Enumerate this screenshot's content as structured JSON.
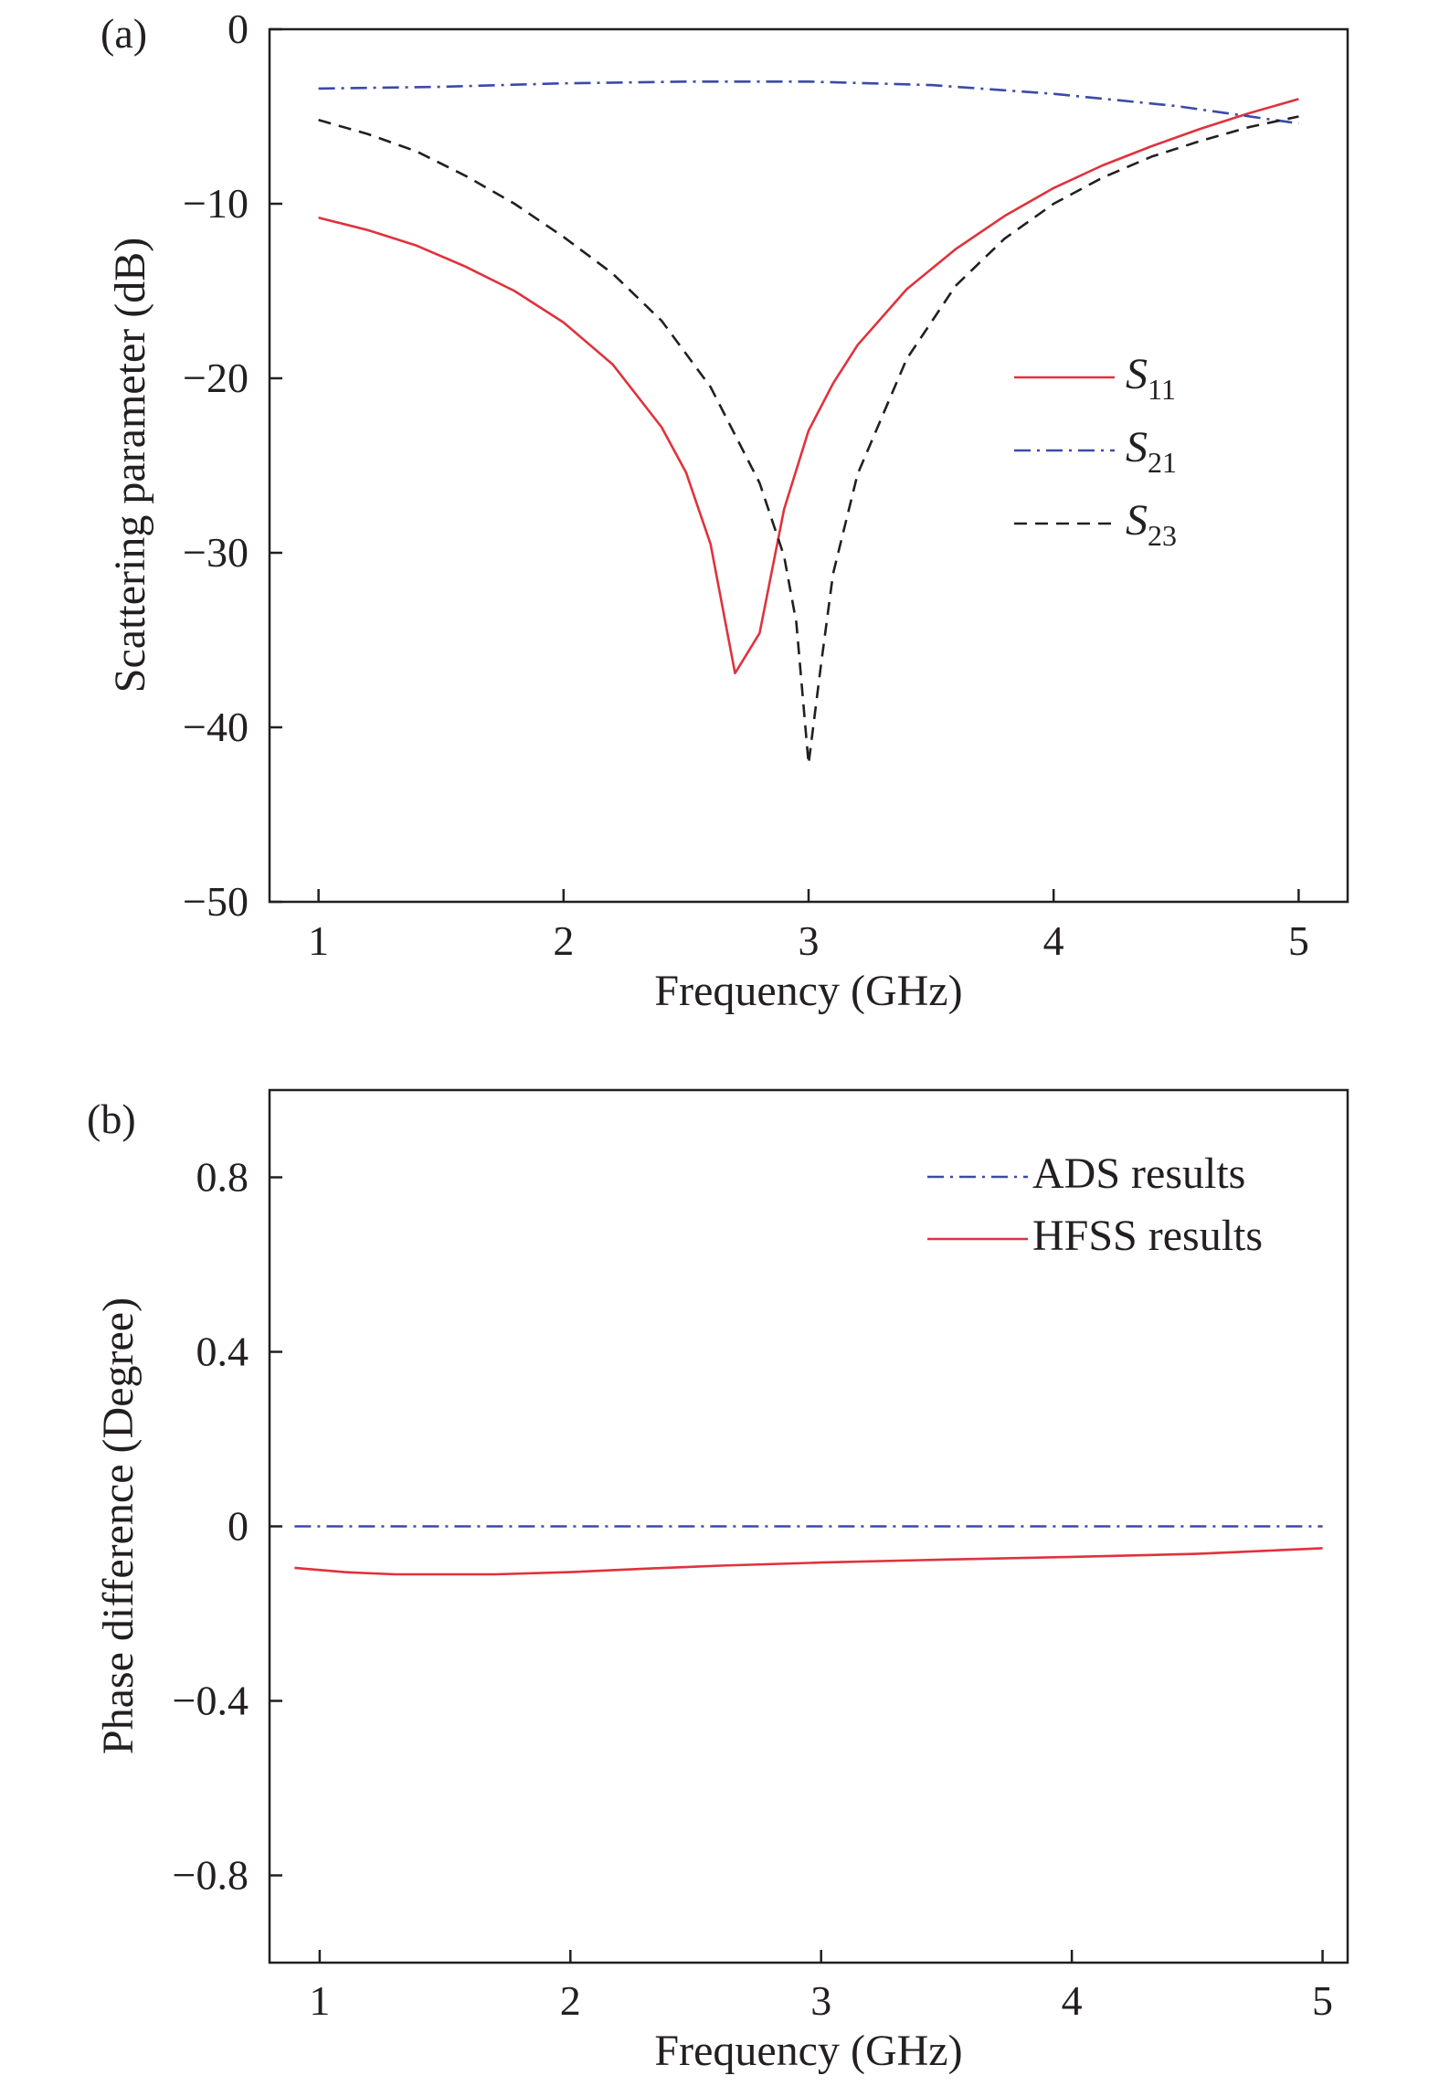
{
  "colors": {
    "s11": "#e0323c",
    "s21": "#3b4aa8",
    "s23": "#231f20",
    "ads": "#3b4aa8",
    "hfss": "#e0323c",
    "axis": "#231f20"
  },
  "chart_data": [
    {
      "type": "line",
      "panel_label": "(a)",
      "xlabel": "Frequency (GHz)",
      "ylabel": "Scattering parameter (dB)",
      "xlim": [
        0.8,
        5.2
      ],
      "ylim": [
        -50,
        0
      ],
      "x_ticks": [
        1,
        2,
        3,
        4,
        5
      ],
      "x_tick_labels": [
        "1",
        "2",
        "3",
        "4",
        "5"
      ],
      "y_ticks": [
        0,
        -10,
        -20,
        -30,
        -40,
        -50
      ],
      "y_tick_labels": [
        "0",
        "−10",
        "−20",
        "−30",
        "−40",
        "−50"
      ],
      "grid": false,
      "legend_position": "right-middle",
      "series": [
        {
          "name": "S11",
          "legend_main": "S",
          "legend_sub": "11",
          "color_key": "s11",
          "dash": "solid",
          "x": [
            1.0,
            1.2,
            1.4,
            1.6,
            1.8,
            2.0,
            2.2,
            2.4,
            2.5,
            2.6,
            2.7,
            2.8,
            2.9,
            3.0,
            3.1,
            3.2,
            3.4,
            3.6,
            3.8,
            4.0,
            4.2,
            4.4,
            4.6,
            4.8,
            5.0
          ],
          "y": [
            -10.8,
            -11.5,
            -12.4,
            -13.6,
            -15.0,
            -16.8,
            -19.2,
            -22.8,
            -25.4,
            -29.5,
            -36.9,
            -34.6,
            -27.5,
            -23.0,
            -20.3,
            -18.1,
            -14.9,
            -12.6,
            -10.7,
            -9.1,
            -7.8,
            -6.7,
            -5.7,
            -4.8,
            -4.0
          ]
        },
        {
          "name": "S21",
          "legend_main": "S",
          "legend_sub": "21",
          "color_key": "s21",
          "dash": "dashdot",
          "x": [
            1.0,
            1.5,
            2.0,
            2.5,
            3.0,
            3.5,
            4.0,
            4.5,
            5.0
          ],
          "y": [
            -3.4,
            -3.3,
            -3.1,
            -3.0,
            -3.0,
            -3.2,
            -3.7,
            -4.4,
            -5.4
          ]
        },
        {
          "name": "S23",
          "legend_main": "S",
          "legend_sub": "23",
          "color_key": "s23",
          "dash": "dashed",
          "x": [
            1.0,
            1.2,
            1.4,
            1.6,
            1.8,
            2.0,
            2.2,
            2.4,
            2.6,
            2.8,
            2.9,
            2.95,
            3.0,
            3.05,
            3.1,
            3.2,
            3.4,
            3.6,
            3.8,
            4.0,
            4.2,
            4.4,
            4.6,
            4.8,
            5.0
          ],
          "y": [
            -5.2,
            -6.0,
            -7.0,
            -8.4,
            -10.0,
            -11.9,
            -14.0,
            -16.7,
            -20.5,
            -26.0,
            -30.2,
            -34.0,
            -42.1,
            -36.5,
            -31.2,
            -25.5,
            -18.9,
            -14.7,
            -12.0,
            -10.0,
            -8.5,
            -7.3,
            -6.4,
            -5.6,
            -5.0
          ]
        }
      ]
    },
    {
      "type": "line",
      "panel_label": "(b)",
      "xlabel": "Frequency (GHz)",
      "ylabel": "Phase difference (Degree)",
      "xlim": [
        0.8,
        5.1
      ],
      "ylim": [
        -1.0,
        1.0
      ],
      "x_ticks": [
        1,
        2,
        3,
        4,
        5
      ],
      "x_tick_labels": [
        "1",
        "2",
        "3",
        "4",
        "5"
      ],
      "y_ticks": [
        0.8,
        0.4,
        0,
        -0.4,
        -0.8
      ],
      "y_tick_labels": [
        "0.8",
        "0.4",
        "0",
        "−0.4",
        "−0.8"
      ],
      "grid": false,
      "legend_position": "top-right",
      "series": [
        {
          "name": "ADS results",
          "color_key": "ads",
          "dash": "dashdot",
          "x": [
            0.9,
            5.0
          ],
          "y": [
            0.0,
            0.0
          ]
        },
        {
          "name": "HFSS results",
          "color_key": "hfss",
          "dash": "solid",
          "x": [
            0.9,
            1.1,
            1.3,
            1.5,
            1.7,
            2.0,
            2.3,
            2.6,
            3.0,
            3.5,
            4.0,
            4.5,
            5.0
          ],
          "y": [
            -0.095,
            -0.105,
            -0.11,
            -0.11,
            -0.11,
            -0.105,
            -0.097,
            -0.09,
            -0.083,
            -0.076,
            -0.07,
            -0.063,
            -0.05
          ]
        }
      ]
    }
  ]
}
